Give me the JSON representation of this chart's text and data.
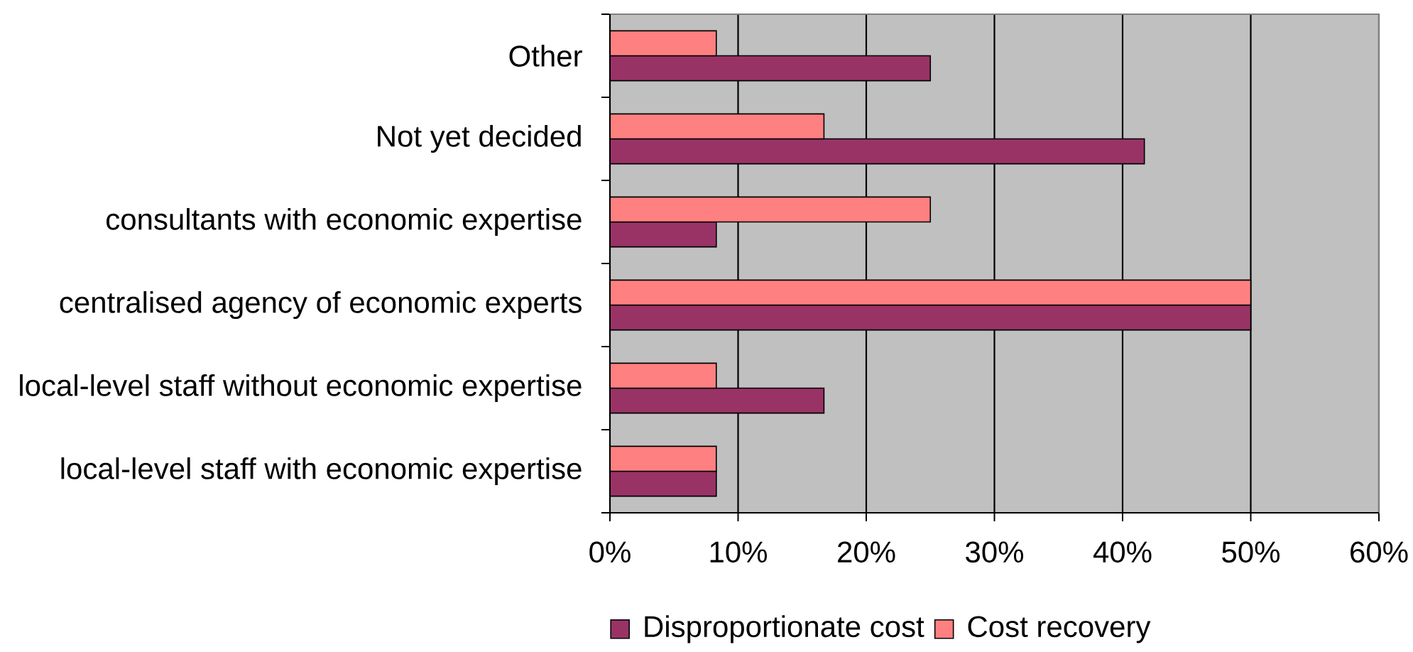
{
  "chart_data": {
    "type": "bar",
    "orientation": "horizontal",
    "categories": [
      "Other",
      "Not yet decided",
      "consultants with economic expertise",
      "centralised agency of economic experts",
      "local-level staff without economic expertise",
      "local-level staff with economic expertise"
    ],
    "series": [
      {
        "name": "Disproportionate cost",
        "color": "#993366",
        "values": [
          25,
          41.7,
          8.3,
          50,
          16.7,
          8.3
        ]
      },
      {
        "name": "Cost recovery",
        "color": "#ff8080",
        "values": [
          8.3,
          16.7,
          25,
          50,
          8.3,
          8.3
        ]
      }
    ],
    "xlim": [
      0,
      60
    ],
    "xticks": [
      {
        "value": 0,
        "label": "0%"
      },
      {
        "value": 10,
        "label": "10%"
      },
      {
        "value": 20,
        "label": "20%"
      },
      {
        "value": 30,
        "label": "30%"
      },
      {
        "value": 40,
        "label": "40%"
      },
      {
        "value": 50,
        "label": "50%"
      },
      {
        "value": 60,
        "label": "60%"
      }
    ],
    "grid": "x",
    "legend": "bottom"
  }
}
